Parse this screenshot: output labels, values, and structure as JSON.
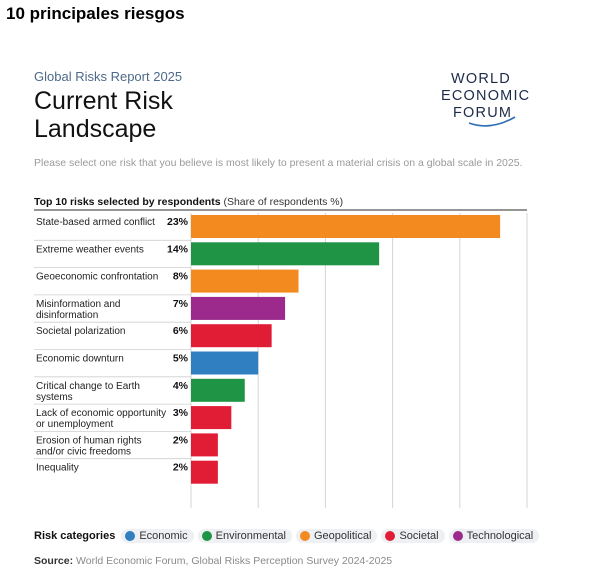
{
  "heading": "10 principales riesgos",
  "report_line": "Global Risks Report 2025",
  "title_lines": [
    "Current Risk",
    "Landscape"
  ],
  "logo_lines": [
    "WORLD",
    "ECONOMIC",
    "FORUM"
  ],
  "instruction": "Please select one risk that you believe is most likely to present a material crisis on a global scale in 2025.",
  "chart_header": {
    "bold": "Top 10 risks selected by respondents",
    "normal": "(Share of respondents %)"
  },
  "colors": {
    "Economic": "#2f7fc1",
    "Environmental": "#1e9444",
    "Geopolitical": "#f28a20",
    "Societal": "#e11d36",
    "Technological": "#9c2a8c"
  },
  "legend": {
    "title": "Risk categories",
    "items": [
      "Economic",
      "Environmental",
      "Geopolitical",
      "Societal",
      "Technological"
    ]
  },
  "source": {
    "label": "Source:",
    "text": "World Economic Forum, Global Risks Perception Survey 2024-2025"
  },
  "chart_data": {
    "type": "bar",
    "orientation": "horizontal",
    "xlim": [
      0,
      25
    ],
    "grid": true,
    "categories": [
      [
        "State-based armed conflict"
      ],
      [
        "Extreme weather events"
      ],
      [
        "Geoeconomic confrontation"
      ],
      [
        "Misinformation and",
        "disinformation"
      ],
      [
        "Societal polarization"
      ],
      [
        "Economic downturn"
      ],
      [
        "Critical change to Earth",
        "systems"
      ],
      [
        "Lack of economic opportunity",
        "or unemployment"
      ],
      [
        "Erosion of human rights",
        "and/or civic freedoms"
      ],
      [
        "Inequality"
      ]
    ],
    "values": [
      23,
      14,
      8,
      7,
      6,
      5,
      4,
      3,
      2,
      2
    ],
    "value_labels": [
      "23%",
      "14%",
      "8%",
      "7%",
      "6%",
      "5%",
      "4%",
      "3%",
      "2%",
      "2%"
    ],
    "bar_categories": [
      "Geopolitical",
      "Environmental",
      "Geopolitical",
      "Technological",
      "Societal",
      "Economic",
      "Environmental",
      "Societal",
      "Societal",
      "Societal"
    ]
  }
}
